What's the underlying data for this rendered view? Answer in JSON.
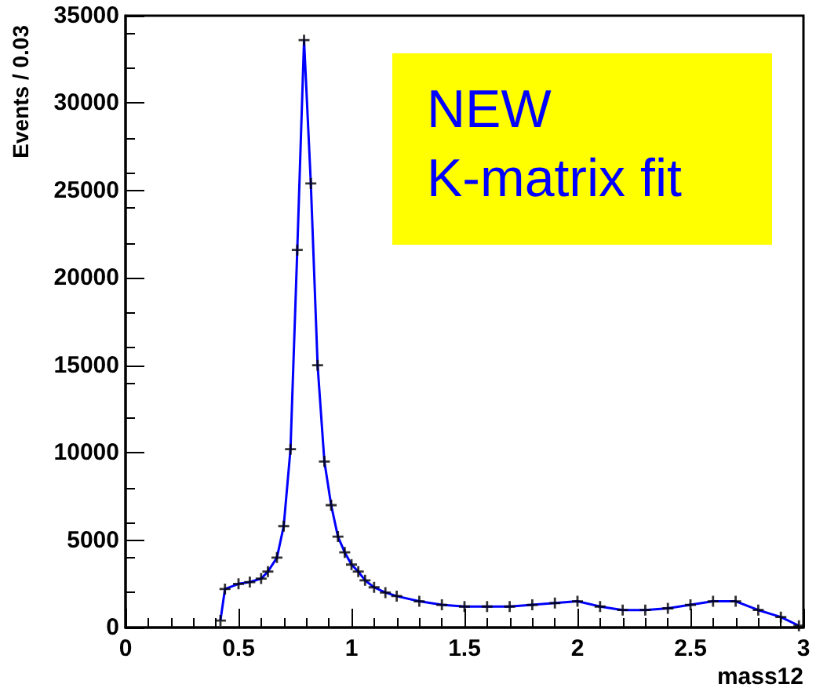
{
  "chart_data": {
    "type": "line",
    "xlabel": "mass12",
    "ylabel": "Events / 0.03",
    "annotations": [
      "NEW\nK-matrix fit"
    ],
    "x": [
      0.42,
      0.44,
      0.5,
      0.55,
      0.6,
      0.63,
      0.67,
      0.7,
      0.73,
      0.76,
      0.79,
      0.82,
      0.85,
      0.88,
      0.91,
      0.94,
      0.97,
      1.0,
      1.03,
      1.06,
      1.1,
      1.15,
      1.2,
      1.3,
      1.4,
      1.5,
      1.6,
      1.7,
      1.8,
      1.9,
      2.0,
      2.1,
      2.2,
      2.3,
      2.4,
      2.5,
      2.6,
      2.7,
      2.8,
      2.9,
      2.98
    ],
    "series": [
      {
        "color": "#0000ff",
        "values": [
          400,
          2200,
          2500,
          2600,
          2800,
          3200,
          4000,
          5800,
          10200,
          21600,
          33600,
          25400,
          15000,
          9500,
          7000,
          5200,
          4300,
          3600,
          3200,
          2700,
          2300,
          2000,
          1800,
          1500,
          1300,
          1200,
          1200,
          1200,
          1300,
          1400,
          1500,
          1200,
          1000,
          1000,
          1100,
          1300,
          1500,
          1500,
          1000,
          600,
          100
        ]
      },
      {
        "type": "scatter",
        "color": "#000000",
        "marker": "cross",
        "values": [
          400,
          2200,
          2500,
          2600,
          2800,
          3200,
          4000,
          5800,
          10200,
          21600,
          33600,
          25400,
          15000,
          9500,
          7000,
          5200,
          4300,
          3600,
          3200,
          2700,
          2300,
          2000,
          1800,
          1500,
          1300,
          1200,
          1200,
          1200,
          1300,
          1400,
          1500,
          1200,
          1000,
          1000,
          1100,
          1300,
          1500,
          1500,
          1000,
          600,
          100
        ]
      }
    ],
    "xlim": [
      0,
      3
    ],
    "xticks": [
      0,
      0.5,
      1,
      1.5,
      2,
      2.5,
      3
    ],
    "ylim": [
      0,
      35000
    ],
    "yticks": [
      0,
      5000,
      10000,
      15000,
      20000,
      25000,
      30000,
      35000
    ],
    "grid": false
  }
}
